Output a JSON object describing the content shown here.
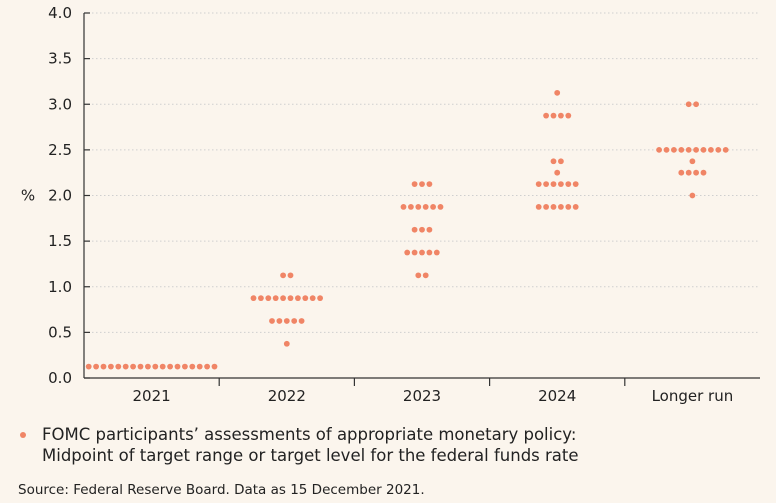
{
  "chart_data": {
    "type": "scatter",
    "ylabel": "%",
    "ylim": [
      0,
      4.0
    ],
    "yticks": [
      "0.0",
      "0.5",
      "1.0",
      "1.5",
      "2.0",
      "2.5",
      "3.0",
      "3.5",
      "4.0"
    ],
    "categories": [
      "2021",
      "2022",
      "2023",
      "2024",
      "Longer run"
    ],
    "dot_color": "#f08566",
    "grid": "horizontal dotted",
    "dots": [
      {
        "category": "2021",
        "rows": [
          {
            "value": 0.125,
            "count": 18
          }
        ]
      },
      {
        "category": "2022",
        "rows": [
          {
            "value": 0.375,
            "count": 1
          },
          {
            "value": 0.625,
            "count": 5
          },
          {
            "value": 0.875,
            "count": 10
          },
          {
            "value": 1.125,
            "count": 2
          }
        ]
      },
      {
        "category": "2023",
        "rows": [
          {
            "value": 1.125,
            "count": 2
          },
          {
            "value": 1.375,
            "count": 5
          },
          {
            "value": 1.625,
            "count": 3
          },
          {
            "value": 1.875,
            "count": 6
          },
          {
            "value": 2.125,
            "count": 3
          }
        ]
      },
      {
        "category": "2024",
        "rows": [
          {
            "value": 1.875,
            "count": 6
          },
          {
            "value": 2.125,
            "count": 6
          },
          {
            "value": 2.25,
            "count": 1
          },
          {
            "value": 2.375,
            "count": 2
          },
          {
            "value": 2.875,
            "count": 4
          },
          {
            "value": 3.125,
            "count": 1
          }
        ]
      },
      {
        "category": "Longer run",
        "rows": [
          {
            "value": 2.0,
            "count": 1
          },
          {
            "value": 2.25,
            "count": 4
          },
          {
            "value": 2.375,
            "count": 1
          },
          {
            "value": 2.5,
            "count": 10
          },
          {
            "value": 3.0,
            "count": 2
          }
        ]
      }
    ]
  },
  "legend": {
    "line1": "FOMC participants’ assessments of appropriate monetary policy:",
    "line2": "Midpoint of target range or target level for the federal funds rate"
  },
  "source": "Source: Federal Reserve Board. Data as 15 December 2021."
}
